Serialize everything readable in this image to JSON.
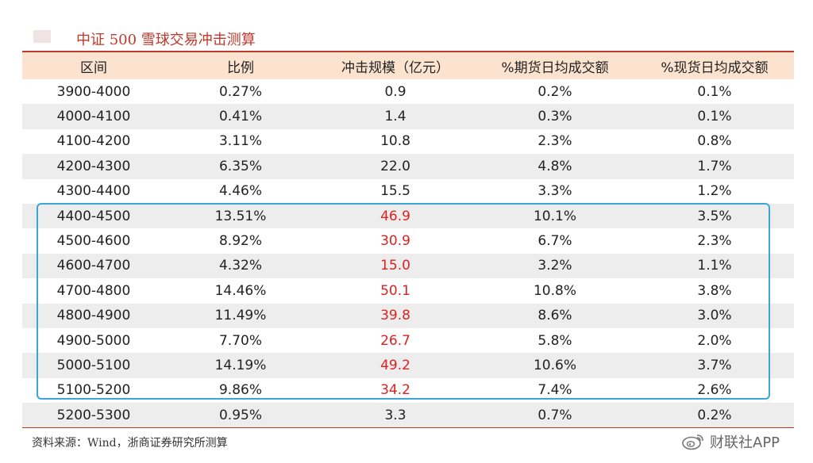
{
  "title": "中证 500 雪球交易冲击测算",
  "table": {
    "headers": [
      "区间",
      "比例",
      "冲击规模（亿元）",
      "%期货日均成交额",
      "%现货日均成交额"
    ],
    "rows": [
      [
        "3900-4000",
        "0.27%",
        "0.9",
        "0.2%",
        "0.1%"
      ],
      [
        "4000-4100",
        "0.41%",
        "1.4",
        "0.3%",
        "0.1%"
      ],
      [
        "4100-4200",
        "3.11%",
        "10.8",
        "2.3%",
        "0.8%"
      ],
      [
        "4200-4300",
        "6.35%",
        "22.0",
        "4.8%",
        "1.7%"
      ],
      [
        "4300-4400",
        "4.46%",
        "15.5",
        "3.3%",
        "1.2%"
      ],
      [
        "4400-4500",
        "13.51%",
        "46.9",
        "10.1%",
        "3.5%"
      ],
      [
        "4500-4600",
        "8.92%",
        "30.9",
        "6.7%",
        "2.3%"
      ],
      [
        "4600-4700",
        "4.32%",
        "15.0",
        "3.2%",
        "1.1%"
      ],
      [
        "4700-4800",
        "14.46%",
        "50.1",
        "10.8%",
        "3.8%"
      ],
      [
        "4800-4900",
        "11.49%",
        "39.8",
        "8.6%",
        "3.0%"
      ],
      [
        "4900-5000",
        "7.70%",
        "26.7",
        "5.8%",
        "2.0%"
      ],
      [
        "5000-5100",
        "14.19%",
        "49.2",
        "10.6%",
        "3.7%"
      ],
      [
        "5100-5200",
        "9.86%",
        "34.2",
        "7.4%",
        "2.6%"
      ],
      [
        "5200-5300",
        "0.95%",
        "3.3",
        "0.7%",
        "0.2%"
      ]
    ],
    "highlighted_rows": [
      5,
      6,
      7,
      8,
      9,
      10,
      11,
      12
    ],
    "highlight_color": "#e02020",
    "box_color": "#3aa6d8"
  },
  "source": "资料来源：Wind，浙商证券研究所测算",
  "watermark": {
    "text": "财联社APP",
    "icon": "weibo-icon"
  },
  "colors": {
    "accent": "#c0392b",
    "header_bg": "#fbe3cf",
    "stripe_bg": "#ededed"
  }
}
